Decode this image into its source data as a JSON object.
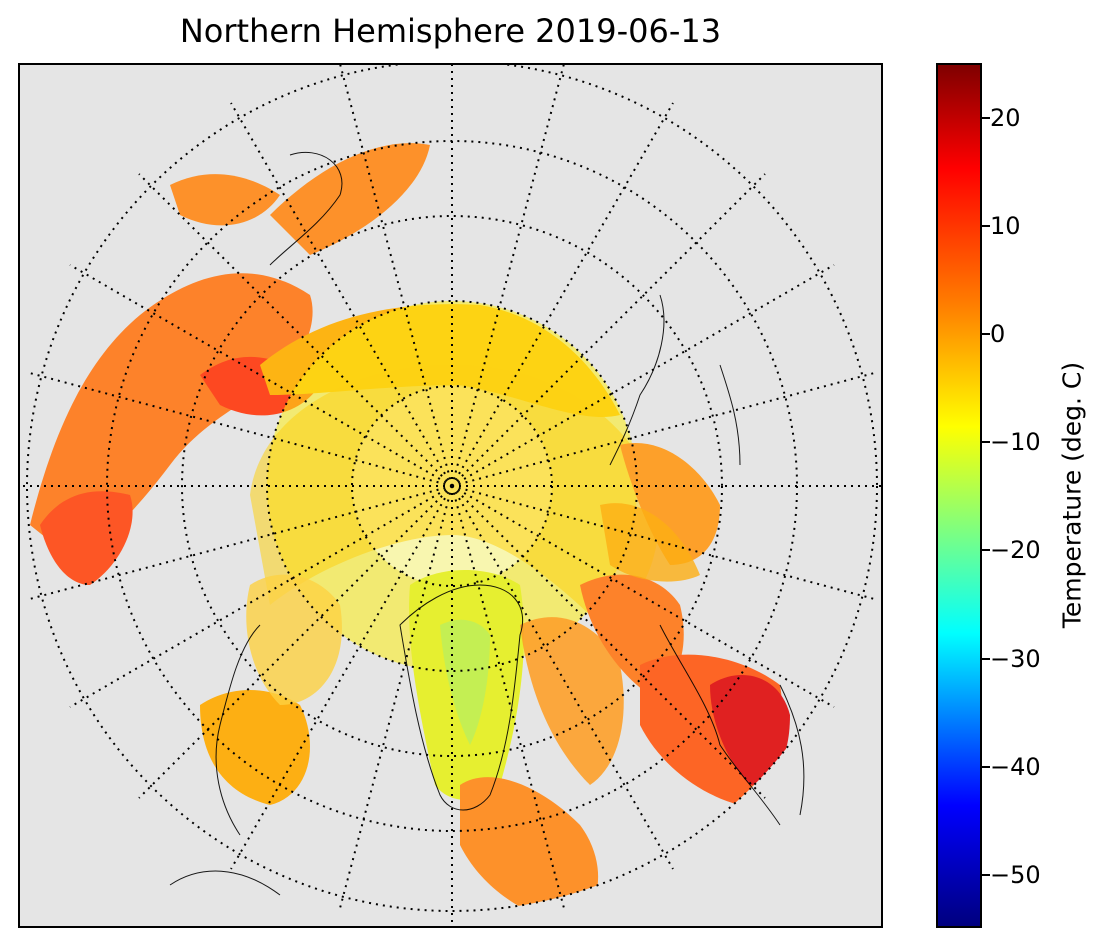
{
  "title": "Northern Hemisphere 2019-06-13",
  "colorbar": {
    "label": "Temperature (deg. C)",
    "ticks": [
      "20",
      "10",
      "0",
      "−10",
      "−20",
      "−30",
      "−40",
      "−50"
    ],
    "tick_values": [
      20,
      10,
      0,
      -10,
      -20,
      -30,
      -40,
      -50
    ],
    "range": [
      -55,
      25
    ],
    "colormap": "jet"
  },
  "map": {
    "projection": "north-polar-stereographic",
    "land_color": "#e5e5e5",
    "graticule": "dotted"
  }
}
